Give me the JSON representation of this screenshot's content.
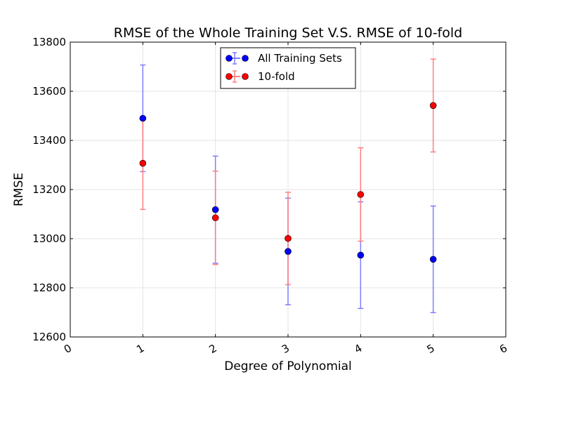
{
  "chart_data": {
    "type": "scatter",
    "title": "RMSE of the Whole Training Set V.S. RMSE of 10-fold",
    "xlabel": "Degree of Polynomial",
    "ylabel": "RMSE",
    "xlim": [
      0,
      6
    ],
    "ylim": [
      12600,
      13800
    ],
    "xticks": [
      "0",
      "1",
      "2",
      "3",
      "4",
      "5",
      "6"
    ],
    "yticks": [
      "12600",
      "12800",
      "13000",
      "13200",
      "13400",
      "13600",
      "13800"
    ],
    "grid": true,
    "legend_position": "upper center",
    "series": [
      {
        "name": "All Training Sets",
        "color": "#0000ff",
        "points": [
          {
            "x": 1,
            "y": 13490,
            "err": 217
          },
          {
            "x": 2,
            "y": 13118,
            "err": 218
          },
          {
            "x": 3,
            "y": 12948,
            "err": 217
          },
          {
            "x": 4,
            "y": 12933,
            "err": 217
          },
          {
            "x": 5,
            "y": 12916,
            "err": 217
          }
        ]
      },
      {
        "name": "10-fold",
        "color": "#ff0000",
        "points": [
          {
            "x": 1,
            "y": 13307,
            "err": 188
          },
          {
            "x": 2,
            "y": 13085,
            "err": 190
          },
          {
            "x": 3,
            "y": 13001,
            "err": 188
          },
          {
            "x": 4,
            "y": 13180,
            "err": 190
          },
          {
            "x": 5,
            "y": 13542,
            "err": 189
          }
        ]
      }
    ]
  }
}
